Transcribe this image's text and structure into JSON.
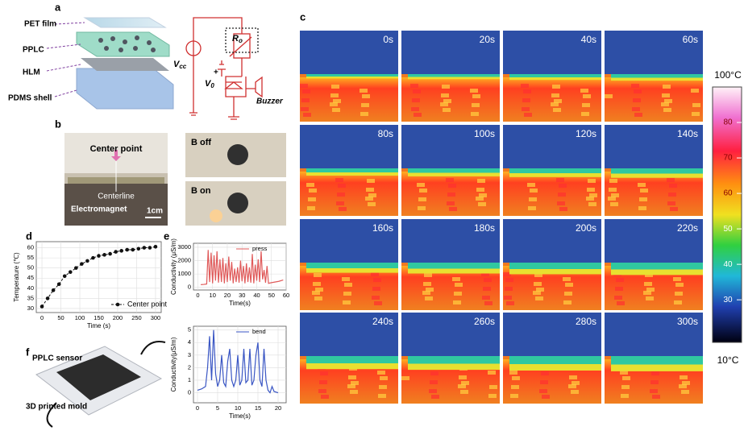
{
  "panels": {
    "labels": [
      "a",
      "b",
      "c",
      "d",
      "e",
      "f"
    ],
    "a": {
      "layers": [
        "PET film",
        "PPLC",
        "HLM",
        "PDMS shell"
      ],
      "vcc": {
        "main": "V",
        "sub": "cc"
      },
      "ro": {
        "main": "R",
        "sub": "o"
      },
      "v0": {
        "main": "V",
        "sub": "0"
      },
      "plus": "+",
      "buzzer": "Buzzer"
    },
    "b": {
      "center": "Center point",
      "centerline": "Centerline",
      "magnet": "Electromagnet",
      "scale": "1cm",
      "off": "B off",
      "on": "B on"
    },
    "f": {
      "sensor": "PPLC sensor",
      "mold": "3D printed mold"
    }
  },
  "thermal": {
    "labels": [
      "0s",
      "20s",
      "40s",
      "60s",
      "80s",
      "100s",
      "120s",
      "140s",
      "160s",
      "180s",
      "200s",
      "220s",
      "240s",
      "260s",
      "280s",
      "300s"
    ],
    "colorbar": {
      "top": "100°C",
      "bottom": "10°C",
      "clim": [
        18,
        90
      ],
      "ticks": [
        80,
        70,
        60,
        50,
        40,
        30
      ]
    }
  },
  "chart_data": [
    {
      "type": "line",
      "xlabel": "Time (s)",
      "ylabel": "Temperature (℃)",
      "x": [
        0,
        15,
        30,
        45,
        60,
        75,
        90,
        105,
        120,
        135,
        150,
        165,
        180,
        195,
        210,
        225,
        240,
        255,
        270,
        285,
        300
      ],
      "series": [
        {
          "name": "Center point",
          "color": "#111111",
          "values": [
            31,
            35,
            39,
            42,
            46,
            48,
            50,
            52,
            53.5,
            55,
            56,
            56.5,
            57,
            58,
            58.5,
            59,
            59,
            59.5,
            60,
            60,
            60.5
          ]
        }
      ],
      "xlim": [
        -15,
        315
      ],
      "ylim": [
        28,
        63
      ],
      "xticks": [
        0,
        50,
        100,
        150,
        200,
        250,
        300
      ],
      "yticks": [
        30,
        35,
        40,
        45,
        50,
        55,
        60
      ],
      "grid": true,
      "markers": true,
      "legend": "lower right"
    },
    {
      "type": "line",
      "xlabel": "Time(s)",
      "ylabel": "Conductivity (μS/m)",
      "x": [
        2,
        4,
        6,
        7,
        8,
        9,
        10,
        11,
        12,
        13,
        14,
        15,
        16,
        17,
        18,
        19,
        20,
        21,
        22,
        23,
        24,
        25,
        26,
        27,
        28,
        29,
        30,
        31,
        32,
        33,
        34,
        35,
        36,
        37,
        38,
        39,
        40,
        41,
        42,
        43,
        44,
        45,
        46,
        47,
        48,
        50,
        55,
        58
      ],
      "series": [
        {
          "name": "press",
          "color": "#e05a5a",
          "values": [
            200,
            220,
            250,
            2800,
            400,
            2600,
            300,
            2400,
            500,
            2700,
            350,
            2100,
            400,
            2200,
            300,
            1800,
            400,
            2300,
            500,
            1900,
            300,
            1400,
            400,
            1500,
            350,
            2000,
            450,
            1600,
            300,
            1800,
            400,
            1500,
            350,
            2500,
            300,
            1700,
            500,
            2100,
            400,
            2700,
            600,
            1300,
            350,
            1600,
            300,
            350,
            450,
            550
          ]
        }
      ],
      "xlim": [
        -3,
        60
      ],
      "ylim": [
        -200,
        3300
      ],
      "xticks": [
        0,
        10,
        20,
        30,
        40,
        50,
        60
      ],
      "yticks": [
        0,
        1000,
        2000,
        3000
      ],
      "grid": true,
      "markers": false,
      "legend": "upper right"
    },
    {
      "type": "line",
      "xlabel": "Time(s)",
      "ylabel": "Conductivity(μS/m)",
      "x": [
        0,
        1,
        2,
        2.5,
        3,
        3.5,
        4,
        4.5,
        5,
        5.5,
        6,
        6.5,
        7,
        7.5,
        8,
        8.5,
        9,
        9.5,
        10,
        10.5,
        11,
        11.5,
        12,
        12.5,
        13,
        13.5,
        14,
        14.5,
        15,
        15.5,
        16,
        16.5,
        17,
        17.5,
        18,
        18.5,
        19,
        20
      ],
      "series": [
        {
          "name": "bend",
          "color": "#3a56c4",
          "values": [
            0.2,
            0.3,
            0.5,
            2,
            4.5,
            1,
            5,
            1.5,
            0.5,
            1,
            3,
            0.8,
            0.5,
            2.5,
            3.5,
            1,
            0.5,
            1,
            3,
            0.6,
            1,
            3.5,
            0.8,
            1,
            3.5,
            0.6,
            1,
            3,
            4,
            1,
            0.5,
            3.5,
            1,
            0.2,
            0,
            0.5,
            0.1,
            0
          ]
        }
      ],
      "xlim": [
        -1,
        22
      ],
      "ylim": [
        -0.8,
        5.3
      ],
      "xticks": [
        0,
        5,
        10,
        15,
        20
      ],
      "yticks": [
        0,
        1,
        2,
        3,
        4,
        5
      ],
      "grid": true,
      "markers": false,
      "legend": "upper right"
    }
  ]
}
